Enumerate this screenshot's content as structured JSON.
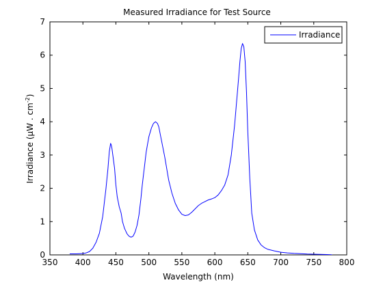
{
  "chart_data": {
    "type": "line",
    "title": "Measured Irradiance for Test Source",
    "xlabel": "Wavelength (nm)",
    "ylabel_prefix": "Irradiance (",
    "ylabel_mu": "μ",
    "ylabel_mid": "W . cm",
    "ylabel_sup": "-2",
    "ylabel_suffix": ")",
    "xlim": [
      350,
      800
    ],
    "ylim": [
      0,
      7
    ],
    "xticks": [
      "350",
      "400",
      "450",
      "500",
      "550",
      "600",
      "650",
      "700",
      "750",
      "800"
    ],
    "yticks": [
      "0",
      "1",
      "2",
      "3",
      "4",
      "5",
      "6",
      "7"
    ],
    "grid": false,
    "legend_position": "top-right",
    "series": [
      {
        "name": "Irradiance",
        "color": "#0000ff",
        "x": [
          380,
          390,
          400,
          405,
          410,
          415,
          420,
          425,
          430,
          435,
          438,
          440,
          442,
          443,
          444,
          446,
          448,
          450,
          452,
          455,
          458,
          460,
          463,
          467,
          470,
          473,
          476,
          479,
          482,
          485,
          488,
          490,
          493,
          496,
          500,
          504,
          507,
          510,
          513,
          515,
          517,
          519,
          521,
          524,
          527,
          530,
          535,
          540,
          545,
          550,
          555,
          560,
          565,
          570,
          575,
          580,
          585,
          590,
          595,
          600,
          605,
          610,
          615,
          620,
          625,
          630,
          633,
          636,
          638,
          640,
          642,
          644,
          646,
          648,
          650,
          653,
          656,
          660,
          665,
          670,
          675,
          680,
          690,
          700,
          710,
          720,
          730,
          740,
          750,
          760,
          770,
          776,
          778
        ],
        "y": [
          0.03,
          0.03,
          0.04,
          0.06,
          0.1,
          0.2,
          0.38,
          0.65,
          1.15,
          2.0,
          2.6,
          3.1,
          3.35,
          3.3,
          3.2,
          2.9,
          2.6,
          2.1,
          1.75,
          1.45,
          1.25,
          1.0,
          0.8,
          0.63,
          0.56,
          0.53,
          0.56,
          0.68,
          0.88,
          1.2,
          1.7,
          2.1,
          2.6,
          3.1,
          3.55,
          3.82,
          3.95,
          4.0,
          3.95,
          3.85,
          3.65,
          3.45,
          3.25,
          2.95,
          2.6,
          2.25,
          1.85,
          1.55,
          1.35,
          1.22,
          1.18,
          1.2,
          1.28,
          1.38,
          1.48,
          1.55,
          1.6,
          1.65,
          1.68,
          1.72,
          1.8,
          1.93,
          2.1,
          2.4,
          3.0,
          3.9,
          4.6,
          5.3,
          5.8,
          6.2,
          6.35,
          6.25,
          5.8,
          4.9,
          3.7,
          2.3,
          1.25,
          0.75,
          0.45,
          0.3,
          0.22,
          0.17,
          0.12,
          0.08,
          0.06,
          0.045,
          0.035,
          0.025,
          0.02,
          0.015,
          0.01,
          0.005,
          0.0
        ]
      }
    ]
  }
}
